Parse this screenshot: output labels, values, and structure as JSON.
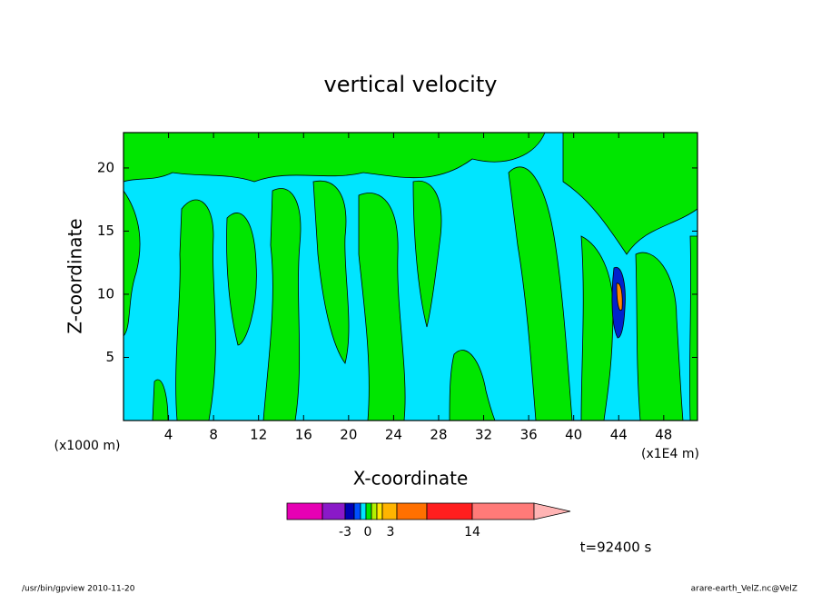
{
  "chart_data": {
    "type": "contour",
    "title": "vertical velocity",
    "x_label": "X-coordinate",
    "y_label": "Z-coordinate",
    "x_unit_left": "(x1000 m)",
    "x_unit_right": "(x1E4 m)",
    "xlim": [
      0,
      51
    ],
    "ylim": [
      0,
      22.8
    ],
    "xticks": [
      4,
      8,
      12,
      16,
      20,
      24,
      28,
      32,
      36,
      40,
      44,
      48
    ],
    "yticks": [
      5,
      10,
      15,
      20
    ],
    "colorbar_ticks": [
      -3,
      0,
      3,
      14
    ],
    "time_label": "t=92400 s",
    "footer_left": "/usr/bin/gpview   2010-11-20",
    "footer_right": "arare-earth_VelZ.nc@VelZ"
  }
}
